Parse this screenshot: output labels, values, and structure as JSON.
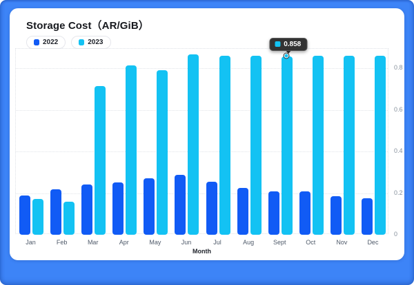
{
  "window": {
    "background_color": "#3D84F7",
    "card_background": "#FFFFFF"
  },
  "header": {
    "title": "Storage Cost（AR/GiB）"
  },
  "legend": {
    "items": [
      {
        "label": "2022",
        "color": "#115BF5"
      },
      {
        "label": "2023",
        "color": "#13C2F3"
      }
    ]
  },
  "tooltip": {
    "value": "0.858",
    "series": "2023",
    "month": "Sept",
    "color": "#13C2F3",
    "background": "#333333"
  },
  "axis": {
    "x_title": "Month",
    "y_ticks": [
      "0",
      "0.2",
      "0.4",
      "0.6",
      "0.8"
    ]
  },
  "chart_data": {
    "type": "bar",
    "title": "Storage Cost（AR/GiB）",
    "categories": [
      "Jan",
      "Feb",
      "Mar",
      "Apr",
      "May",
      "Jun",
      "Jul",
      "Aug",
      "Sept",
      "Oct",
      "Nov",
      "Dec"
    ],
    "series": [
      {
        "name": "2022",
        "color": "#115BF5",
        "values": [
          0.19,
          0.218,
          0.24,
          0.25,
          0.272,
          0.288,
          0.256,
          0.225,
          0.21,
          0.207,
          0.185,
          0.175
        ]
      },
      {
        "name": "2023",
        "color": "#13C2F3",
        "values": [
          0.171,
          0.158,
          0.715,
          0.815,
          0.79,
          0.865,
          0.86,
          0.86,
          0.858,
          0.86,
          0.86,
          0.86
        ]
      }
    ],
    "xlabel": "Month",
    "ylabel": "",
    "ylim": [
      0,
      0.893
    ],
    "y_tick_values": [
      0,
      0.2,
      0.4,
      0.6,
      0.8
    ],
    "grid": "dotted-horizontal",
    "legend_position": "top-left",
    "y_axis_side": "right",
    "highlighted_point": {
      "series": "2023",
      "category": "Sept",
      "value": 0.858
    }
  }
}
